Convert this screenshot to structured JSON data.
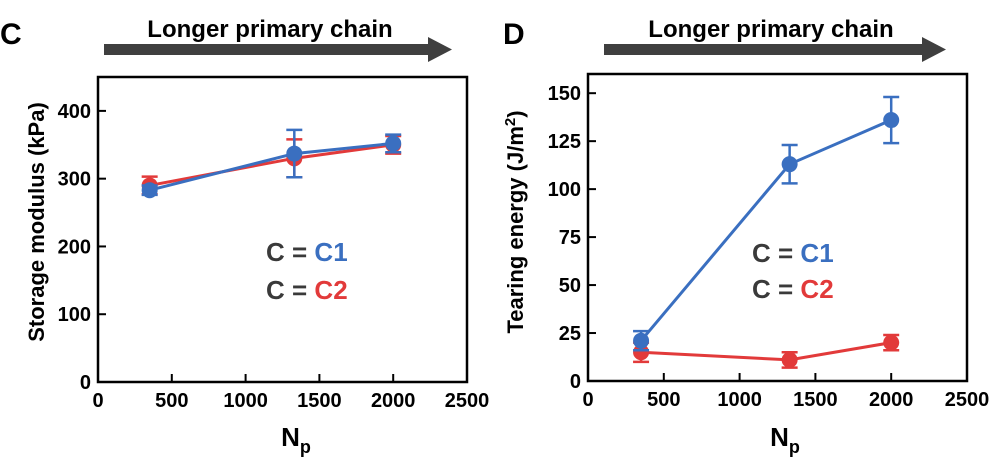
{
  "colors": {
    "c1": "#3a6fc0",
    "c2": "#e23a3a",
    "text": "#3a3a3a",
    "axis": "#000000",
    "arrow": "#3f3f3f"
  },
  "chart_data": [
    {
      "type": "line",
      "panel_label": "C",
      "banner": "Longer primary chain",
      "xlabel": "N",
      "xlabel_sub": "p",
      "ylabel": "Storage modulus (kPa)",
      "xlim": [
        0,
        2500
      ],
      "ylim": [
        0,
        450
      ],
      "xticks": [
        0,
        500,
        1000,
        1500,
        2000,
        2500
      ],
      "yticks": [
        0,
        100,
        200,
        300,
        400
      ],
      "grid": false,
      "legend": {
        "prefix": "C = ",
        "entries": [
          "C1",
          "C2"
        ],
        "placement": "center"
      },
      "series": [
        {
          "name": "C1",
          "color": "#3a6fc0",
          "x": [
            350,
            1330,
            2000
          ],
          "y": [
            283,
            337,
            352
          ],
          "err": [
            7,
            35,
            13
          ]
        },
        {
          "name": "C2",
          "color": "#e23a3a",
          "x": [
            350,
            1330,
            2000
          ],
          "y": [
            290,
            330,
            350
          ],
          "err": [
            13,
            28,
            13
          ]
        }
      ]
    },
    {
      "type": "line",
      "panel_label": "D",
      "banner": "Longer primary chain",
      "xlabel": "N",
      "xlabel_sub": "p",
      "ylabel": "Tearing energy (J/m",
      "ylabel_sup": "2",
      "ylabel_end": ")",
      "xlim": [
        0,
        2500
      ],
      "ylim": [
        0,
        160
      ],
      "xticks": [
        0,
        500,
        1000,
        1500,
        2000,
        2500
      ],
      "yticks": [
        0,
        25,
        50,
        75,
        100,
        125,
        150
      ],
      "grid": false,
      "legend": {
        "prefix": "C = ",
        "entries": [
          "C1",
          "C2"
        ],
        "placement": "center"
      },
      "series": [
        {
          "name": "C1",
          "color": "#3a6fc0",
          "x": [
            350,
            1330,
            2000
          ],
          "y": [
            21,
            113,
            136
          ],
          "err": [
            5,
            10,
            12
          ]
        },
        {
          "name": "C2",
          "color": "#e23a3a",
          "x": [
            350,
            1330,
            2000
          ],
          "y": [
            15,
            11,
            20
          ],
          "err": [
            5,
            4,
            4
          ]
        }
      ]
    }
  ]
}
